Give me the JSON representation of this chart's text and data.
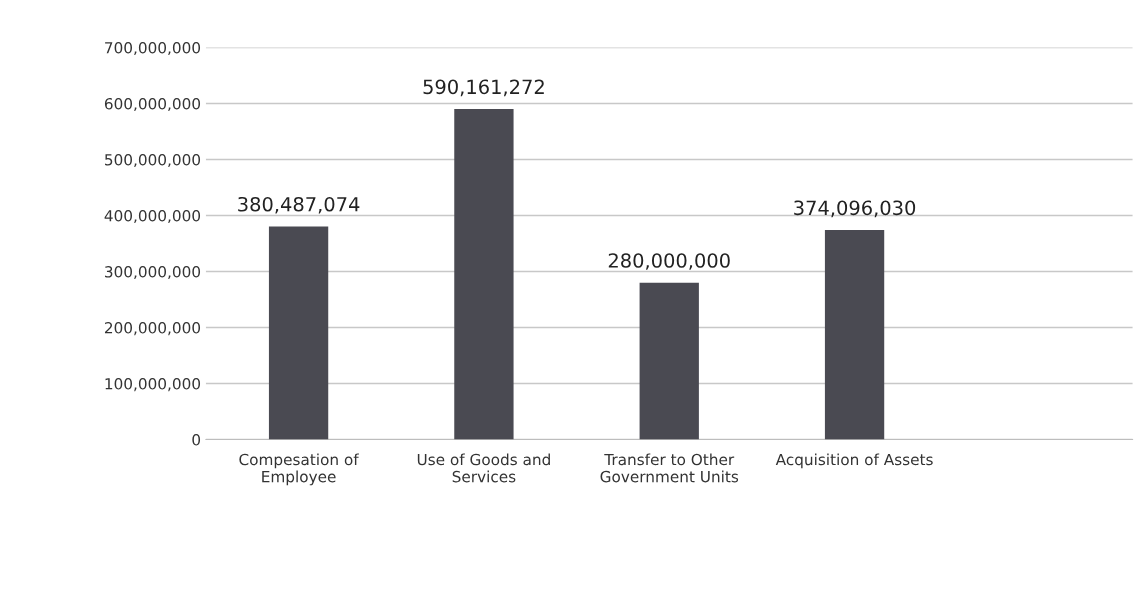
{
  "chart_data": {
    "type": "bar",
    "categories": [
      "Compesation of\nEmployee",
      "Use of Goods and\nServices",
      "Transfer to Other\nGovernment Units",
      "Acquisition of Assets",
      null
    ],
    "values": [
      380487074,
      590161272,
      280000000,
      374096030,
      null
    ],
    "value_labels": [
      "380,487,074",
      "590,161,272",
      "280,000,000",
      "374,096,030",
      null
    ],
    "color": "#4a4a52",
    "ylim": [
      0,
      700000000
    ],
    "yticks": [
      {
        "value": 0,
        "label": "0"
      },
      {
        "value": 100000000,
        "label": "100,000,000"
      },
      {
        "value": 200000000,
        "label": "200,000,000"
      },
      {
        "value": 300000000,
        "label": "300,000,000"
      },
      {
        "value": 400000000,
        "label": "400,000,000"
      },
      {
        "value": 500000000,
        "label": "500,000,000"
      },
      {
        "value": 600000000,
        "label": "600,000,000"
      },
      {
        "value": 700000000,
        "label": "700,000,000"
      }
    ],
    "grid": "y"
  }
}
